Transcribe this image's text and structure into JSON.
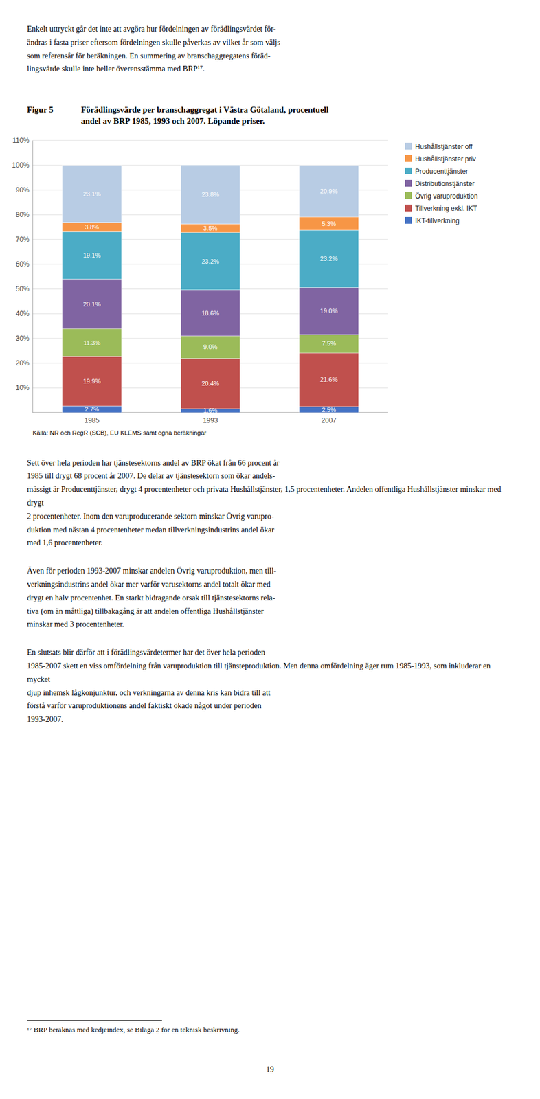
{
  "text_above": "Enkelt uttryckt går det inte att avgöra hur fördelningen av förädlingsvärdet för-\nändras i fasta priser eftersom fördelningen skulle påverkas av vilket år som väljs\nsom referensår för beräkningen. En summering av branschaggregatens föräd-\nlingsvärde skulle inte heller överensstämma med BRP¹⁷.",
  "figure_label": "Figur 5",
  "chart_data": {
    "type": "bar",
    "stacked": true,
    "title": "Förädlingsvärde per branschaggregat i Västra Götaland, procentuell\nandel av BRP 1985, 1993 och 2007. Löpande priser.",
    "source": "Källa: NR och RegR (SCB), EU KLEMS samt egna beräkningar",
    "categories": [
      "1985",
      "1993",
      "2007"
    ],
    "series": [
      {
        "name": "IKT-tillverkning",
        "color": "#4472C4",
        "values": [
          2.7,
          1.6,
          2.5
        ],
        "value_labels": [
          "2.7%",
          "1.6%",
          "2.5%"
        ]
      },
      {
        "name": "Tillverkning exkl. IKT",
        "color": "#C0504D",
        "values": [
          19.9,
          20.4,
          21.6
        ],
        "value_labels": [
          "19.9%",
          "20.4%",
          "21.6%"
        ]
      },
      {
        "name": "Övrig varuproduktion",
        "color": "#9BBB59",
        "values": [
          11.3,
          9.0,
          7.5
        ],
        "value_labels": [
          "11.3%",
          "9.0%",
          "7.5%"
        ]
      },
      {
        "name": "Distributionstjänster",
        "color": "#8064A2",
        "values": [
          20.1,
          18.6,
          19.0
        ],
        "value_labels": [
          "20.1%",
          "18.6%",
          "19.0%"
        ]
      },
      {
        "name": "Producenttjänster",
        "color": "#4BACC6",
        "values": [
          19.1,
          23.2,
          23.2
        ],
        "value_labels": [
          "19.1%",
          "23.2%",
          "23.2%"
        ]
      },
      {
        "name": "Hushållstjänster priv",
        "color": "#F79646",
        "values": [
          3.8,
          3.5,
          5.3
        ],
        "value_labels": [
          "3.8%",
          "3.5%",
          "5.3%"
        ]
      },
      {
        "name": "Hushållstjänster off",
        "color": "#B8CCE4",
        "values": [
          23.1,
          23.8,
          20.9
        ],
        "value_labels": [
          "23.1%",
          "23.8%",
          "20.9%"
        ]
      }
    ],
    "ylim": [
      0,
      110
    ],
    "yticks": [
      {
        "value": 10,
        "label": "10%"
      },
      {
        "value": 20,
        "label": "20%"
      },
      {
        "value": 30,
        "label": "30%"
      },
      {
        "value": 40,
        "label": "40%"
      },
      {
        "value": 50,
        "label": "50%"
      },
      {
        "value": 60,
        "label": "60%"
      },
      {
        "value": 70,
        "label": "70%"
      },
      {
        "value": 80,
        "label": "80%"
      },
      {
        "value": 90,
        "label": "90%"
      },
      {
        "value": 100,
        "label": "100%"
      },
      {
        "value": 110,
        "label": "110%"
      }
    ],
    "grid": true,
    "legend": "right",
    "data_labels": true
  },
  "paragraphs": [
    "Sett över hela perioden har tjänstesektorns andel av BRP ökat från 66 procent år\n1985 till drygt 68 procent år 2007. De delar av tjänstesektorn som ökar andels-\nmässigt är Producenttjänster, drygt 4 procentenheter och privata Hushållstjänster, 1,5 procentenheter. Andelen offentliga Hushållstjänster minskar med drygt\n2 procentenheter. Inom den varuproducerande sektorn minskar Övrig varupro-\nduktion med nästan 4 procentenheter medan tillverkningsindustrins andel ökar\nmed 1,6 procentenheter.",
    "Även för perioden 1993-2007 minskar andelen Övrig varuproduktion, men till-\nverkningsindustrins andel ökar mer varför varusektorns andel totalt ökar med\ndrygt en halv procentenhet. En starkt bidragande orsak till tjänstesektorns rela-\ntiva (om än måttliga) tillbakagång är att andelen offentliga Hushållstjänster\nminskar med 3 procentenheter.",
    "En slutsats blir därför att i förädlingsvärdetermer har det över hela perioden\n1985-2007 skett en viss omfördelning från varuproduktion till tjänsteproduktion. Men denna omfördelning äger rum 1985-1993, som inkluderar en mycket\ndjup inhemsk lågkonjunktur, och verkningarna av denna kris kan bidra till att\nförstå varför varuproduktionens andel faktiskt ökade något under perioden\n1993-2007."
  ],
  "footnote": "¹⁷ BRP beräknas med kedjeindex, se Bilaga 2 för en teknisk beskrivning.",
  "page_number": "19"
}
